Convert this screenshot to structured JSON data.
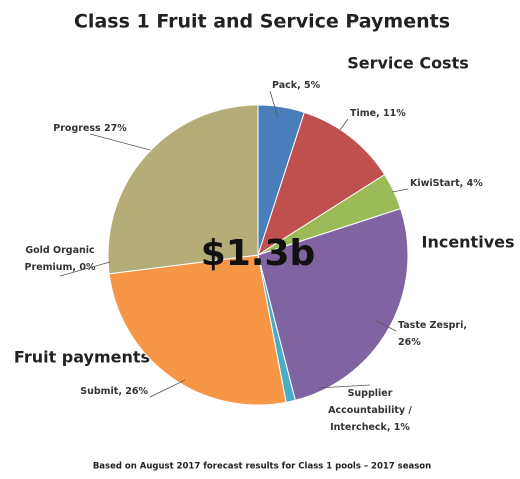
{
  "chart_data": {
    "type": "pie",
    "title": "Class 1 Fruit and Service Payments",
    "center_label": "$1.3b",
    "annotations": [
      "Service Costs",
      "Incentives",
      "Fruit payments"
    ],
    "footnote": "Based on August 2017 forecast results for Class 1 pools – 2017 season",
    "values": [
      5,
      11,
      4,
      26,
      1,
      26,
      0,
      27
    ],
    "value_labels": [
      [
        "Pack, 5%"
      ],
      [
        "Time, 11%"
      ],
      [
        "KiwiStart, 4%"
      ],
      [
        "Taste Zespri,",
        "26%"
      ],
      [
        "Supplier",
        "Accountability /",
        "Intercheck, 1%"
      ],
      [
        "Submit, 26%"
      ],
      [
        "Gold Organic",
        "Premium, 0%"
      ],
      [
        "Progress 27%"
      ]
    ],
    "colors": [
      "#4a7ebb",
      "#c0504d",
      "#9bbb59",
      "#8064a2",
      "#4bacc6",
      "#f79646",
      "#d4c34a",
      "#b5ad77"
    ]
  }
}
